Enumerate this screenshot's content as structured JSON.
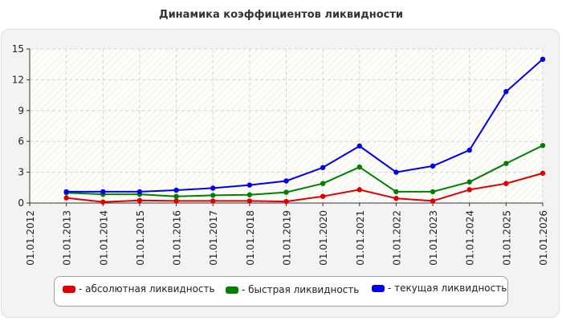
{
  "chart_data": {
    "type": "line",
    "title": "Динамика коэффициентов ликвидности",
    "xlabel": "",
    "ylabel": "",
    "categories": [
      "01.01.2012",
      "01.01.2013",
      "01.01.2014",
      "01.01.2015",
      "01.01.2016",
      "01.01.2017",
      "01.01.2018",
      "01.01.2019",
      "01.01.2020",
      "01.01.2021",
      "01.01.2022",
      "01.01.2023",
      "01.01.2024",
      "01.01.2025",
      "01.01.2026"
    ],
    "y_ticks": [
      "0",
      "3",
      "6",
      "9",
      "12",
      "15"
    ],
    "ylim": [
      0,
      15
    ],
    "grid": true,
    "legend_position": "bottom",
    "series": [
      {
        "name": "- абсолютная ликвидность",
        "color": "#e00000",
        "values": [
          null,
          0.5,
          0.1,
          0.25,
          0.2,
          0.2,
          0.2,
          0.15,
          0.65,
          1.3,
          0.45,
          0.2,
          1.3,
          1.9,
          2.9
        ]
      },
      {
        "name": "- быстрая ликвидность",
        "color": "#008000",
        "values": [
          null,
          1.0,
          0.85,
          0.85,
          0.65,
          0.75,
          0.8,
          1.05,
          1.9,
          3.5,
          1.1,
          1.1,
          2.05,
          3.85,
          5.6
        ]
      },
      {
        "name": "- текущая ликвидность",
        "color": "#0000ee",
        "values": [
          null,
          1.1,
          1.1,
          1.1,
          1.25,
          1.45,
          1.75,
          2.15,
          3.45,
          5.55,
          3.0,
          3.6,
          5.15,
          10.85,
          14.0
        ]
      }
    ]
  }
}
